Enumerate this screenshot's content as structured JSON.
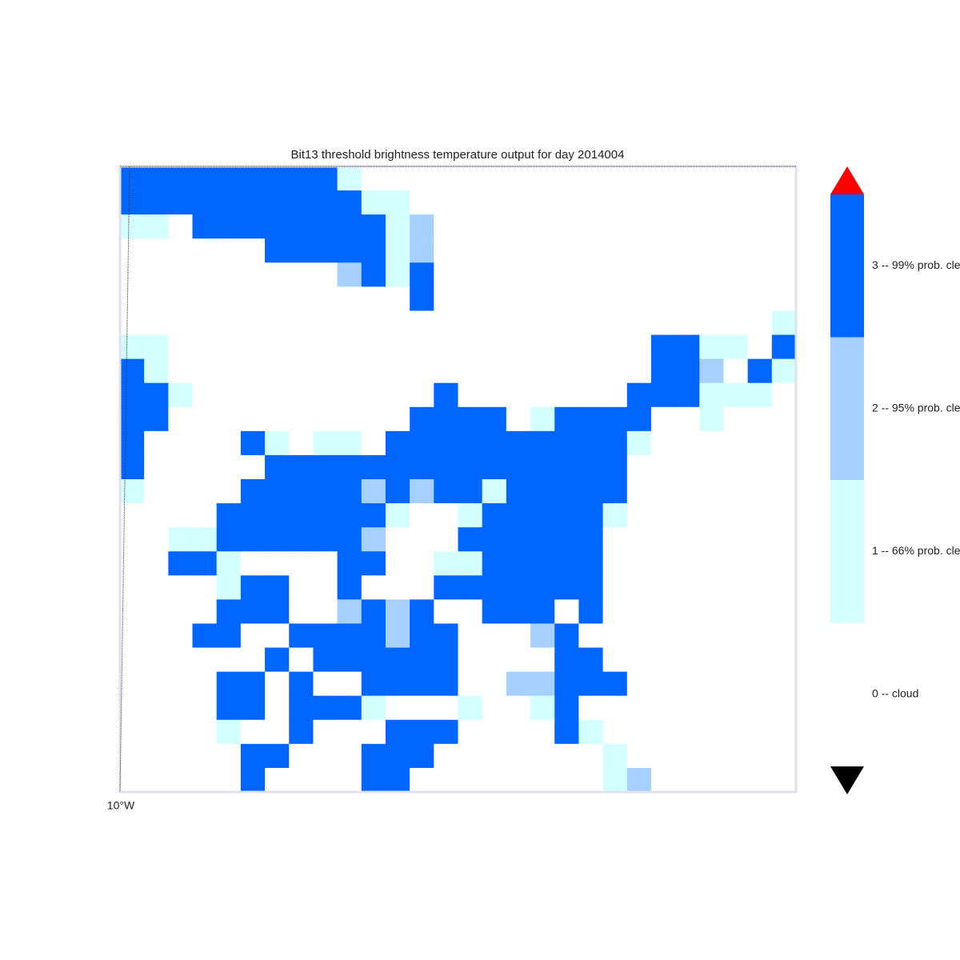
{
  "title": "Bit13 threshold brightness temperature  output for day 2014004",
  "map": {
    "lon_label": "10°W",
    "grid": [
      [
        3,
        3,
        3,
        3,
        3,
        3,
        3,
        3,
        3,
        1,
        0,
        0,
        0,
        0,
        0,
        0,
        0,
        0,
        0,
        0,
        0,
        0,
        0,
        0,
        0,
        0,
        0,
        0
      ],
      [
        3,
        3,
        3,
        3,
        3,
        3,
        3,
        3,
        3,
        3,
        1,
        1,
        0,
        0,
        0,
        0,
        0,
        0,
        0,
        0,
        0,
        0,
        0,
        0,
        0,
        0,
        0,
        0
      ],
      [
        1,
        1,
        0,
        3,
        3,
        3,
        3,
        3,
        3,
        3,
        3,
        1,
        2,
        0,
        0,
        0,
        0,
        0,
        0,
        0,
        0,
        0,
        0,
        0,
        0,
        0,
        0,
        0
      ],
      [
        0,
        0,
        0,
        0,
        0,
        0,
        3,
        3,
        3,
        3,
        3,
        1,
        2,
        0,
        0,
        0,
        0,
        0,
        0,
        0,
        0,
        0,
        0,
        0,
        0,
        0,
        0,
        0
      ],
      [
        0,
        0,
        0,
        0,
        0,
        0,
        0,
        0,
        0,
        2,
        3,
        1,
        3,
        0,
        0,
        0,
        0,
        0,
        0,
        0,
        0,
        0,
        0,
        0,
        0,
        0,
        0,
        0
      ],
      [
        0,
        0,
        0,
        0,
        0,
        0,
        0,
        0,
        0,
        0,
        0,
        0,
        3,
        0,
        0,
        0,
        0,
        0,
        0,
        0,
        0,
        0,
        0,
        0,
        0,
        0,
        0,
        0
      ],
      [
        0,
        0,
        0,
        0,
        0,
        0,
        0,
        0,
        0,
        0,
        0,
        0,
        0,
        0,
        0,
        0,
        0,
        0,
        0,
        0,
        0,
        0,
        0,
        0,
        0,
        0,
        0,
        1
      ],
      [
        1,
        1,
        0,
        0,
        0,
        0,
        0,
        0,
        0,
        0,
        0,
        0,
        0,
        0,
        0,
        0,
        0,
        0,
        0,
        0,
        0,
        0,
        3,
        3,
        1,
        1,
        0,
        3
      ],
      [
        3,
        1,
        0,
        0,
        0,
        0,
        0,
        0,
        0,
        0,
        0,
        0,
        0,
        0,
        0,
        0,
        0,
        0,
        0,
        0,
        0,
        0,
        3,
        3,
        2,
        0,
        3,
        1
      ],
      [
        3,
        3,
        1,
        0,
        0,
        0,
        0,
        0,
        0,
        0,
        0,
        0,
        0,
        3,
        0,
        0,
        0,
        0,
        0,
        0,
        0,
        3,
        3,
        3,
        1,
        1,
        1,
        0
      ],
      [
        3,
        3,
        0,
        0,
        0,
        0,
        0,
        0,
        0,
        0,
        0,
        0,
        3,
        3,
        3,
        3,
        0,
        1,
        3,
        3,
        3,
        3,
        0,
        0,
        1,
        0,
        0,
        0
      ],
      [
        3,
        0,
        0,
        0,
        0,
        3,
        1,
        0,
        1,
        1,
        0,
        3,
        3,
        3,
        3,
        3,
        3,
        3,
        3,
        3,
        3,
        1,
        0,
        0,
        0,
        0,
        0,
        0
      ],
      [
        3,
        0,
        0,
        0,
        0,
        0,
        3,
        3,
        3,
        3,
        3,
        3,
        3,
        3,
        3,
        3,
        3,
        3,
        3,
        3,
        3,
        0,
        0,
        0,
        0,
        0,
        0,
        0
      ],
      [
        1,
        0,
        0,
        0,
        0,
        3,
        3,
        3,
        3,
        3,
        2,
        3,
        2,
        3,
        3,
        1,
        3,
        3,
        3,
        3,
        3,
        0,
        0,
        0,
        0,
        0,
        0,
        0
      ],
      [
        0,
        0,
        0,
        0,
        3,
        3,
        3,
        3,
        3,
        3,
        3,
        1,
        0,
        0,
        1,
        3,
        3,
        3,
        3,
        3,
        1,
        0,
        0,
        0,
        0,
        0,
        0,
        0
      ],
      [
        0,
        0,
        1,
        1,
        3,
        3,
        3,
        3,
        3,
        3,
        2,
        0,
        0,
        0,
        3,
        3,
        3,
        3,
        3,
        3,
        0,
        0,
        0,
        0,
        0,
        0,
        0,
        0
      ],
      [
        0,
        0,
        3,
        3,
        1,
        0,
        0,
        0,
        0,
        3,
        3,
        0,
        0,
        1,
        1,
        3,
        3,
        3,
        3,
        3,
        0,
        0,
        0,
        0,
        0,
        0,
        0,
        0
      ],
      [
        0,
        0,
        0,
        0,
        1,
        3,
        3,
        0,
        0,
        3,
        0,
        0,
        0,
        3,
        3,
        3,
        3,
        3,
        3,
        3,
        0,
        0,
        0,
        0,
        0,
        0,
        0,
        0
      ],
      [
        0,
        0,
        0,
        0,
        3,
        3,
        3,
        0,
        0,
        2,
        3,
        2,
        3,
        0,
        0,
        3,
        3,
        3,
        0,
        3,
        0,
        0,
        0,
        0,
        0,
        0,
        0,
        0
      ],
      [
        0,
        0,
        0,
        3,
        3,
        0,
        0,
        3,
        3,
        3,
        3,
        2,
        3,
        3,
        0,
        0,
        0,
        2,
        3,
        0,
        0,
        0,
        0,
        0,
        0,
        0,
        0,
        0
      ],
      [
        0,
        0,
        0,
        0,
        0,
        0,
        3,
        0,
        3,
        3,
        3,
        3,
        3,
        3,
        0,
        0,
        0,
        0,
        3,
        3,
        0,
        0,
        0,
        0,
        0,
        0,
        0,
        0
      ],
      [
        0,
        0,
        0,
        0,
        3,
        3,
        0,
        3,
        0,
        0,
        3,
        3,
        3,
        3,
        0,
        0,
        2,
        2,
        3,
        3,
        3,
        0,
        0,
        0,
        0,
        0,
        0,
        0
      ],
      [
        0,
        0,
        0,
        0,
        3,
        3,
        0,
        3,
        3,
        3,
        1,
        0,
        0,
        0,
        1,
        0,
        0,
        1,
        3,
        0,
        0,
        0,
        0,
        0,
        0,
        0,
        0,
        0
      ],
      [
        0,
        0,
        0,
        0,
        1,
        0,
        0,
        3,
        0,
        0,
        0,
        3,
        3,
        3,
        0,
        0,
        0,
        0,
        3,
        1,
        0,
        0,
        0,
        0,
        0,
        0,
        0,
        0
      ],
      [
        0,
        0,
        0,
        0,
        0,
        3,
        3,
        0,
        0,
        0,
        3,
        3,
        3,
        0,
        0,
        0,
        0,
        0,
        0,
        0,
        1,
        0,
        0,
        0,
        0,
        0,
        0,
        0
      ],
      [
        0,
        0,
        0,
        0,
        0,
        3,
        0,
        0,
        0,
        0,
        3,
        3,
        0,
        0,
        0,
        0,
        0,
        0,
        0,
        0,
        1,
        2,
        0,
        0,
        0,
        0,
        0,
        0
      ]
    ]
  },
  "colorbar": {
    "classes": [
      {
        "value": 3,
        "label": "3 -- 99% prob. cle",
        "color": "#0066ff"
      },
      {
        "value": 2,
        "label": "2 -- 95% prob. cle",
        "color": "#a6d0ff"
      },
      {
        "value": 1,
        "label": "1 -- 66% prob. cle",
        "color": "#d4ffff"
      },
      {
        "value": 0,
        "label": "0 -- cloud",
        "color": "#ffffff"
      }
    ]
  }
}
